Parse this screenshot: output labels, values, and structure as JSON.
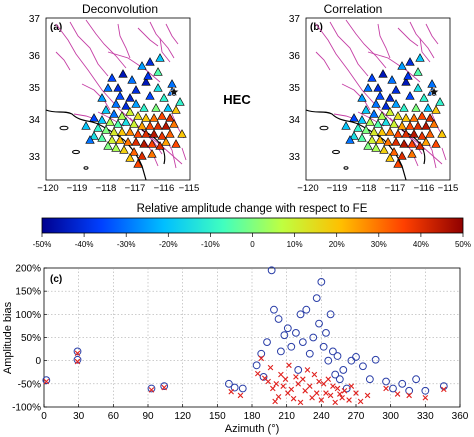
{
  "panels": [
    {
      "id": "a",
      "title": "Deconvolution",
      "tag": "(a)",
      "x_ticks": [
        "−120",
        "−119",
        "−118",
        "−117",
        "−116",
        "−115"
      ],
      "y_ticks": [
        "37",
        "36",
        "35",
        "34",
        "33"
      ]
    },
    {
      "id": "b",
      "title": "Correlation",
      "tag": "(b)",
      "x_ticks": [
        "−120",
        "−119",
        "−118",
        "−117",
        "−116",
        "−115"
      ],
      "y_ticks": [
        "37",
        "36",
        "35",
        "34",
        "33"
      ]
    }
  ],
  "station_label": "HEC",
  "colorbar": {
    "title": "Relative amplitude change with respect to FE",
    "ticks": [
      "-50%",
      "-40%",
      "-30%",
      "-20%",
      "-10%",
      "0",
      "10%",
      "20%",
      "30%",
      "40%",
      "50%"
    ],
    "colors": [
      "#00008f",
      "#0040ff",
      "#00bfff",
      "#40ffbf",
      "#bfff40",
      "#ffbf00",
      "#ff4000",
      "#8f0000"
    ]
  },
  "chart_data": {
    "type": "scatter",
    "tag": "(c)",
    "xlabel": "Azimuth (°)",
    "ylabel": "Amplitude bias",
    "xlim": [
      0,
      360
    ],
    "ylim": [
      -100,
      200
    ],
    "x_ticks": [
      "0",
      "30",
      "60",
      "90",
      "120",
      "150",
      "180",
      "210",
      "240",
      "270",
      "300",
      "330",
      "360"
    ],
    "y_ticks": [
      "200%",
      "150%",
      "100%",
      "50%",
      "0",
      "-50%",
      "-100%"
    ],
    "grid": true,
    "series": [
      {
        "marker": "circle",
        "color": "#2b3fa8",
        "points": [
          [
            2,
            -42
          ],
          [
            29,
            20
          ],
          [
            29,
            2
          ],
          [
            93,
            -60
          ],
          [
            104,
            -55
          ],
          [
            160,
            -50
          ],
          [
            165,
            -58
          ],
          [
            172,
            -60
          ],
          [
            184,
            -10
          ],
          [
            188,
            15
          ],
          [
            190,
            -35
          ],
          [
            193,
            40
          ],
          [
            197,
            195
          ],
          [
            199,
            110
          ],
          [
            203,
            90
          ],
          [
            205,
            20
          ],
          [
            208,
            55
          ],
          [
            211,
            70
          ],
          [
            214,
            30
          ],
          [
            218,
            60
          ],
          [
            220,
            -20
          ],
          [
            222,
            100
          ],
          [
            224,
            40
          ],
          [
            227,
            110
          ],
          [
            230,
            15
          ],
          [
            233,
            50
          ],
          [
            236,
            135
          ],
          [
            238,
            80
          ],
          [
            240,
            170
          ],
          [
            242,
            30
          ],
          [
            244,
            60
          ],
          [
            246,
            0
          ],
          [
            248,
            100
          ],
          [
            250,
            20
          ],
          [
            252,
            -30
          ],
          [
            254,
            10
          ],
          [
            256,
            -40
          ],
          [
            259,
            -20
          ],
          [
            262,
            -60
          ],
          [
            266,
            0
          ],
          [
            270,
            8
          ],
          [
            276,
            -12
          ],
          [
            282,
            -40
          ],
          [
            287,
            2
          ],
          [
            296,
            -45
          ],
          [
            302,
            -60
          ],
          [
            310,
            -50
          ],
          [
            316,
            -65
          ],
          [
            322,
            -40
          ],
          [
            330,
            -65
          ],
          [
            346,
            -55
          ]
        ]
      },
      {
        "marker": "x",
        "color": "#e0211e",
        "points": [
          [
            2,
            -45
          ],
          [
            29,
            16
          ],
          [
            29,
            -2
          ],
          [
            93,
            -63
          ],
          [
            104,
            -58
          ],
          [
            162,
            -67
          ],
          [
            170,
            -75
          ],
          [
            185,
            -28
          ],
          [
            188,
            5
          ],
          [
            191,
            -38
          ],
          [
            194,
            -45
          ],
          [
            196,
            -15
          ],
          [
            198,
            -60
          ],
          [
            200,
            -88
          ],
          [
            201,
            -50
          ],
          [
            203,
            -78
          ],
          [
            205,
            -30
          ],
          [
            207,
            -55
          ],
          [
            209,
            -40
          ],
          [
            211,
            -70
          ],
          [
            212,
            -10
          ],
          [
            214,
            -62
          ],
          [
            216,
            -82
          ],
          [
            218,
            -35
          ],
          [
            220,
            -50
          ],
          [
            222,
            -90
          ],
          [
            224,
            -40
          ],
          [
            226,
            -65
          ],
          [
            228,
            -20
          ],
          [
            230,
            -55
          ],
          [
            232,
            -80
          ],
          [
            234,
            -30
          ],
          [
            236,
            -70
          ],
          [
            238,
            -45
          ],
          [
            240,
            -85
          ],
          [
            242,
            -50
          ],
          [
            244,
            -70
          ],
          [
            246,
            -40
          ],
          [
            248,
            -75
          ],
          [
            250,
            -55
          ],
          [
            252,
            -90
          ],
          [
            254,
            -60
          ],
          [
            256,
            -72
          ],
          [
            258,
            -80
          ],
          [
            260,
            -65
          ],
          [
            264,
            -85
          ],
          [
            266,
            -55
          ],
          [
            270,
            -70
          ],
          [
            274,
            -88
          ],
          [
            280,
            -75
          ],
          [
            296,
            -60
          ],
          [
            306,
            -72
          ],
          [
            316,
            -75
          ],
          [
            330,
            -80
          ],
          [
            346,
            -62
          ]
        ]
      }
    ]
  }
}
